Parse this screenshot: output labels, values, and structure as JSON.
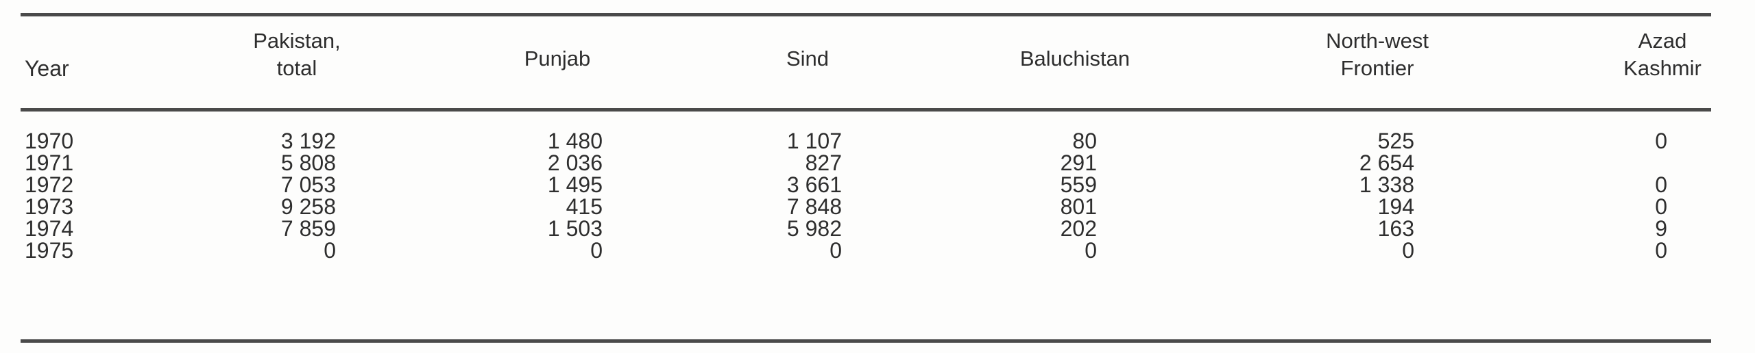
{
  "table": {
    "columns": [
      {
        "key": "year",
        "lines": [
          "Year"
        ]
      },
      {
        "key": "pakistan_total",
        "lines": [
          "Pakistan,",
          "total"
        ]
      },
      {
        "key": "punjab",
        "lines": [
          "Punjab"
        ]
      },
      {
        "key": "sind",
        "lines": [
          "Sind"
        ]
      },
      {
        "key": "baluchistan",
        "lines": [
          "Baluchistan"
        ]
      },
      {
        "key": "north_west_frontier",
        "lines": [
          "North-west",
          "Frontier"
        ]
      },
      {
        "key": "azad_kashmir",
        "lines": [
          "Azad",
          "Kashmir"
        ]
      }
    ],
    "rows": [
      [
        "1970",
        "3 192",
        "1 480",
        "1 107",
        "80",
        "525",
        "0"
      ],
      [
        "1971",
        "5 808",
        "2 036",
        "827",
        "291",
        "2 654",
        ""
      ],
      [
        "1972",
        "7 053",
        "1 495",
        "3 661",
        "559",
        "1 338",
        "0"
      ],
      [
        "1973",
        "9 258",
        "415",
        "7 848",
        "801",
        "194",
        "0"
      ],
      [
        "1974",
        "7 859",
        "1 503",
        "5 982",
        "202",
        "163",
        "9"
      ],
      [
        "1975",
        "0",
        "0",
        "0",
        "0",
        "0",
        "0"
      ]
    ]
  }
}
